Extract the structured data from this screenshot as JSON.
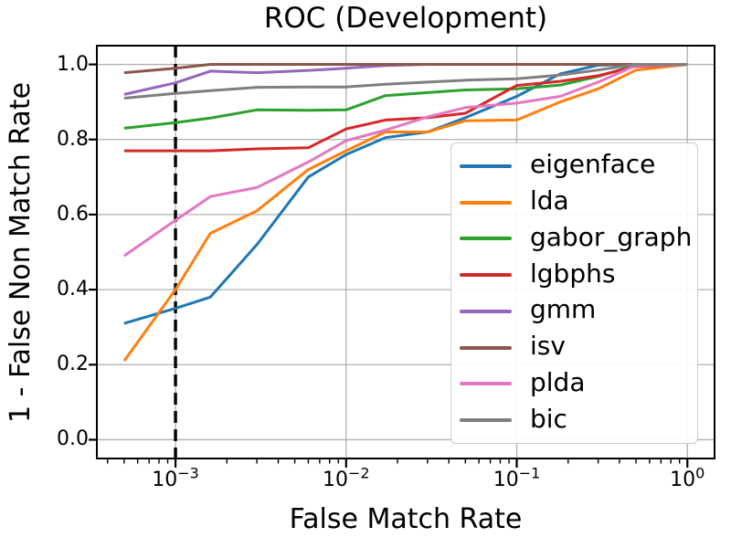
{
  "chart_data": {
    "type": "line",
    "title": "ROC (Development)",
    "xlabel": "False Match Rate",
    "ylabel": "1 - False Non Match Rate",
    "xscale": "log",
    "xlim": [
      0.000346,
      1.443
    ],
    "ylim": [
      -0.05,
      1.05
    ],
    "grid": true,
    "legend_position": "lower right",
    "x": [
      0.0005,
      0.001,
      0.0016,
      0.003,
      0.006,
      0.01,
      0.017,
      0.03,
      0.05,
      0.1,
      0.18,
      0.3,
      0.5,
      1.0
    ],
    "series": [
      {
        "name": "eigenface",
        "color": "#1f77b4",
        "values": [
          0.31,
          0.35,
          0.38,
          0.52,
          0.7,
          0.76,
          0.805,
          0.82,
          0.858,
          0.915,
          0.975,
          0.998,
          1.0,
          1.0
        ]
      },
      {
        "name": "lda",
        "color": "#ff7f0e",
        "values": [
          0.21,
          0.4,
          0.55,
          0.61,
          0.72,
          0.77,
          0.82,
          0.82,
          0.85,
          0.852,
          0.9,
          0.935,
          0.985,
          1.0
        ]
      },
      {
        "name": "gabor_graph",
        "color": "#2ca02c",
        "values": [
          0.83,
          0.845,
          0.857,
          0.879,
          0.878,
          0.879,
          0.917,
          0.925,
          0.932,
          0.935,
          0.945,
          0.968,
          0.998,
          1.0
        ]
      },
      {
        "name": "lgbphs",
        "color": "#d62728",
        "values": [
          0.77,
          0.77,
          0.77,
          0.775,
          0.778,
          0.828,
          0.852,
          0.858,
          0.87,
          0.944,
          0.955,
          0.97,
          0.995,
          1.0
        ]
      },
      {
        "name": "gmm",
        "color": "#9467bd",
        "values": [
          0.92,
          0.951,
          0.982,
          0.978,
          0.984,
          0.99,
          0.997,
          1.0,
          1.0,
          1.0,
          1.0,
          1.0,
          1.0,
          1.0
        ]
      },
      {
        "name": "isv",
        "color": "#8c564b",
        "values": [
          0.978,
          0.99,
          1.0,
          1.0,
          1.0,
          1.0,
          1.0,
          1.0,
          1.0,
          1.0,
          1.0,
          1.0,
          1.0,
          1.0
        ]
      },
      {
        "name": "plda",
        "color": "#e377c2",
        "values": [
          0.49,
          0.585,
          0.648,
          0.672,
          0.74,
          0.797,
          0.825,
          0.86,
          0.885,
          0.897,
          0.915,
          0.953,
          0.997,
          1.0
        ]
      },
      {
        "name": "bic",
        "color": "#7f7f7f",
        "values": [
          0.91,
          0.923,
          0.93,
          0.939,
          0.94,
          0.94,
          0.947,
          0.953,
          0.958,
          0.962,
          0.972,
          0.985,
          1.0,
          1.0
        ]
      }
    ],
    "threshold_line": {
      "x": 0.001,
      "color": "#000000",
      "style": "dashed"
    },
    "xticks": [
      {
        "value": 0.001,
        "base": "10",
        "exp": "−3"
      },
      {
        "value": 0.01,
        "base": "10",
        "exp": "−2"
      },
      {
        "value": 0.1,
        "base": "10",
        "exp": "−1"
      },
      {
        "value": 1.0,
        "base": "10",
        "exp": "0"
      }
    ],
    "yticks": [
      {
        "value": 0.0,
        "label": "0.0"
      },
      {
        "value": 0.2,
        "label": "0.2"
      },
      {
        "value": 0.4,
        "label": "0.4"
      },
      {
        "value": 0.6,
        "label": "0.6"
      },
      {
        "value": 0.8,
        "label": "0.8"
      },
      {
        "value": 1.0,
        "label": "1.0"
      }
    ],
    "colors": {
      "grid": "#b0b0b0",
      "axis": "#000000",
      "background": "#ffffff"
    }
  }
}
